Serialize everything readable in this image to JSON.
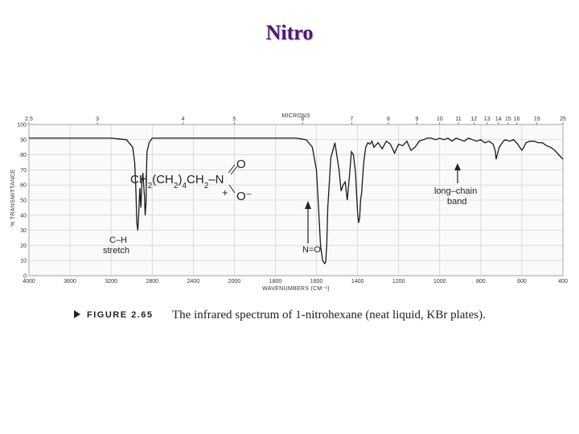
{
  "slide": {
    "title": "Nitro"
  },
  "chart_data": {
    "type": "line",
    "top_axis_label": "MICRONS",
    "xlabel": "WAVENUMBERS (CM⁻¹)",
    "ylabel": "% TRANSMITTANCE",
    "xlim": [
      4000,
      400
    ],
    "ylim": [
      0,
      100
    ],
    "x_ticks": [
      4000,
      3600,
      3200,
      2800,
      2400,
      2000,
      1800,
      1600,
      1400,
      1200,
      1000,
      800,
      600,
      400
    ],
    "y_ticks": [
      0,
      10,
      20,
      30,
      40,
      50,
      60,
      70,
      80,
      90,
      100
    ],
    "micron_ticks": [
      2.5,
      3,
      4,
      5,
      6,
      7,
      8,
      9,
      10,
      11,
      12,
      13,
      14,
      15,
      16,
      19,
      25
    ],
    "grid": true,
    "series": [
      {
        "x": [
          4000,
          3800,
          3600,
          3400,
          3200,
          3050,
          2990,
          2970,
          2958,
          2950,
          2940,
          2930,
          2920,
          2910,
          2900,
          2890,
          2875,
          2868,
          2860,
          2855,
          2850,
          2830,
          2800,
          2700,
          2600,
          2400,
          2200,
          2000,
          1900,
          1800,
          1700,
          1650,
          1620,
          1600,
          1590,
          1580,
          1570,
          1560,
          1555,
          1550,
          1545,
          1530,
          1510,
          1490,
          1480,
          1470,
          1460,
          1450,
          1440,
          1430,
          1420,
          1410,
          1400,
          1395,
          1390,
          1385,
          1380,
          1375,
          1370,
          1360,
          1350,
          1340,
          1330,
          1320,
          1300,
          1280,
          1260,
          1240,
          1220,
          1200,
          1180,
          1160,
          1140,
          1120,
          1100,
          1080,
          1060,
          1040,
          1020,
          1000,
          980,
          960,
          940,
          920,
          900,
          880,
          860,
          840,
          820,
          800,
          780,
          760,
          740,
          730,
          725,
          720,
          710,
          700,
          690,
          680,
          660,
          640,
          620,
          610,
          600,
          590,
          580,
          560,
          540,
          520,
          500,
          480,
          460,
          440,
          420,
          400
        ],
        "values": [
          91,
          91,
          91,
          91,
          91,
          90,
          85,
          75,
          55,
          35,
          30,
          42,
          58,
          45,
          62,
          68,
          52,
          40,
          48,
          70,
          82,
          88,
          91,
          91,
          91,
          91,
          91,
          91,
          91,
          91,
          91,
          90,
          85,
          70,
          45,
          20,
          10,
          8,
          9,
          20,
          45,
          78,
          88,
          70,
          56,
          60,
          62,
          50,
          65,
          82,
          80,
          68,
          42,
          35,
          38,
          50,
          55,
          65,
          75,
          85,
          88,
          87,
          89,
          85,
          88,
          84,
          89,
          87,
          81,
          87,
          86,
          89,
          83,
          85,
          89,
          90,
          91,
          91,
          90,
          91,
          90,
          91,
          89,
          91,
          90,
          89,
          91,
          90,
          89,
          90,
          88,
          89,
          87,
          83,
          77,
          80,
          85,
          87,
          89,
          90,
          89,
          90,
          87,
          85,
          83,
          85,
          88,
          89,
          89,
          88,
          88,
          86,
          85,
          83,
          80,
          77
        ]
      }
    ],
    "annotations": [
      {
        "text": "CH2(CH2)4CH2–N",
        "type": "structure"
      },
      {
        "text": "O",
        "type": "structure-top-oxygen"
      },
      {
        "text": "O⁻",
        "type": "structure-bottom-oxygen"
      },
      {
        "text": "+",
        "type": "structure-charge"
      },
      {
        "text": "C–H",
        "x": 2930,
        "y": 30
      },
      {
        "text": "stretch",
        "x": 2930,
        "y": 30
      },
      {
        "text": "N=O",
        "x": 1380,
        "y": 35
      },
      {
        "text": "long–chain",
        "x": 725,
        "y": 77
      },
      {
        "text": "band",
        "x": 725,
        "y": 77
      }
    ],
    "figure_label": "FIGURE 2.65",
    "caption": "The infrared spectrum of 1-nitrohexane (neat liquid, KBr plates)."
  },
  "colors": {
    "title": "#4a1a72",
    "grid": "#c9c9c9",
    "trace": "#1a1a1a",
    "frame": "#777777"
  }
}
